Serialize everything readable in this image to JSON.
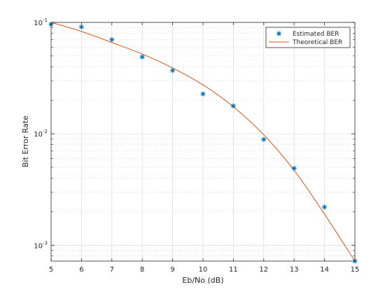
{
  "chart_data": {
    "type": "line",
    "xlabel": "Eb/No (dB)",
    "ylabel": "Bit Error Rate",
    "xlim": [
      5,
      15
    ],
    "ylim": [
      0.00072,
      0.1
    ],
    "yscale": "log",
    "grid": true,
    "minor_grid": true,
    "legend_position": "top-right",
    "x_ticks": [
      5,
      6,
      7,
      8,
      9,
      10,
      11,
      12,
      13,
      14,
      15
    ],
    "y_ticks": [
      {
        "value": 0.001,
        "base": "10",
        "exp": "-3"
      },
      {
        "value": 0.01,
        "base": "10",
        "exp": "-2"
      },
      {
        "value": 0.1,
        "base": "10",
        "exp": "-1"
      }
    ],
    "series": [
      {
        "name": "Estimated BER",
        "kind": "markers",
        "marker": "asterisk",
        "color": "#0072BD",
        "x": [
          5,
          6,
          7,
          8,
          9,
          10,
          11,
          12,
          13,
          14,
          15
        ],
        "y": [
          0.096,
          0.091,
          0.07,
          0.049,
          0.037,
          0.0228,
          0.0178,
          0.0089,
          0.0049,
          0.0022,
          0.00072
        ]
      },
      {
        "name": "Theoretical BER",
        "kind": "line",
        "color": "#D95319",
        "x": [
          5,
          6,
          7,
          8,
          9,
          10,
          11,
          12,
          13,
          14,
          15
        ],
        "y": [
          0.1,
          0.083,
          0.066,
          0.052,
          0.039,
          0.0275,
          0.0175,
          0.0098,
          0.0047,
          0.0019,
          0.00072
        ]
      }
    ]
  }
}
